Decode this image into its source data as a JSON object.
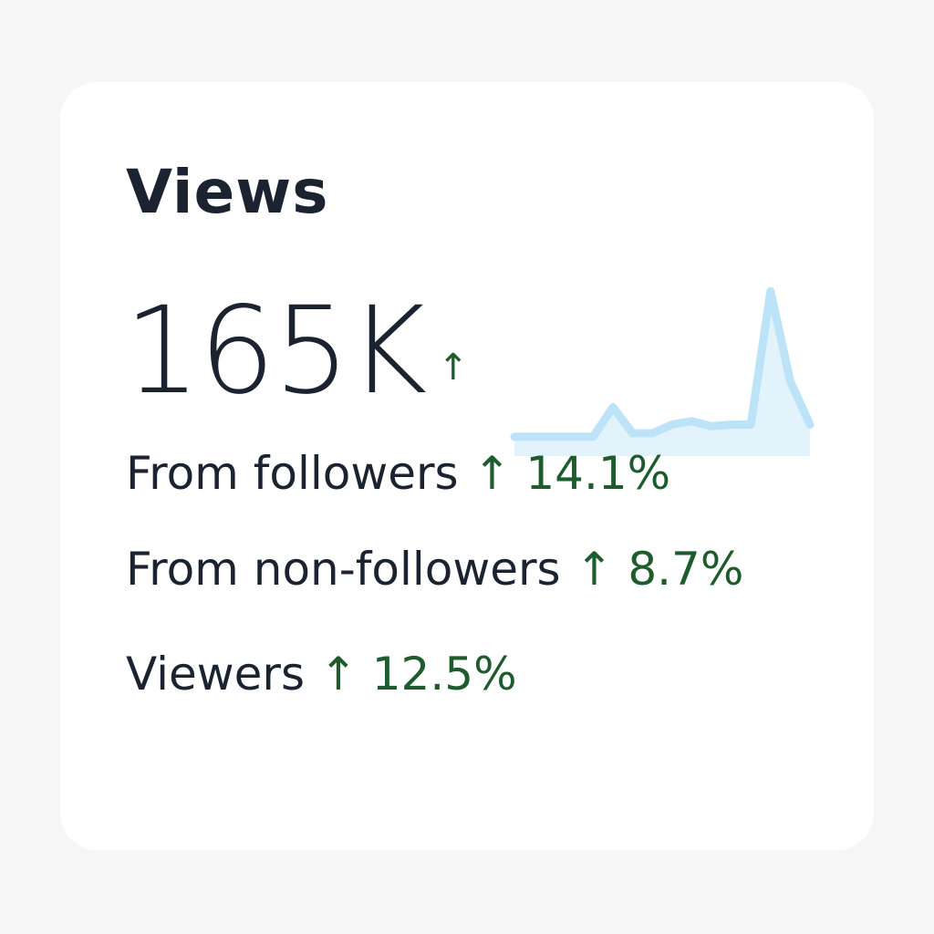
{
  "header": {
    "title": "Views"
  },
  "total": {
    "value": "165K",
    "arrow": "↑"
  },
  "sparkline": {
    "values": [
      8,
      8,
      8,
      8,
      8,
      25,
      10,
      10,
      15,
      17,
      14,
      15,
      15,
      92,
      40,
      15
    ],
    "ylim": [
      0,
      100
    ],
    "color": "#bde3f8",
    "fill": "#e3f3fc"
  },
  "rows": [
    {
      "label": "From followers",
      "arrow": "↑",
      "change": "14.1%"
    },
    {
      "label": "From non-followers",
      "arrow": "↑",
      "change": "8.7%"
    },
    {
      "label": "Viewers",
      "arrow": "↑",
      "change": "12.5%"
    }
  ]
}
